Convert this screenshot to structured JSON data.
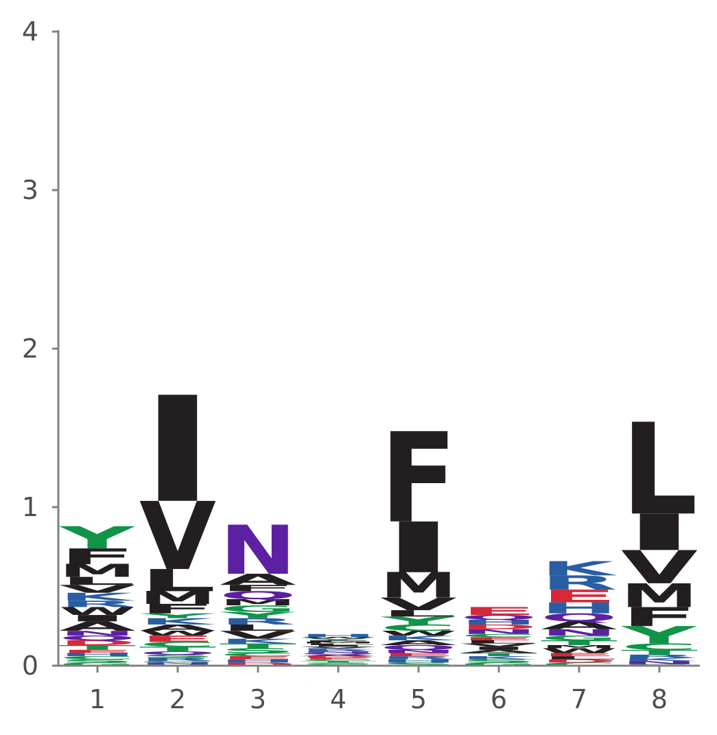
{
  "chart_data": {
    "type": "sequence-logo",
    "title": "",
    "xlabel": "",
    "ylabel": "",
    "ylim": [
      0,
      4
    ],
    "yticks": [
      "0",
      "1",
      "2",
      "3",
      "4"
    ],
    "xticks": [
      "1",
      "2",
      "3",
      "4",
      "5",
      "6",
      "7",
      "8"
    ],
    "grid": false,
    "colors": {
      "hydrophobic": "#231f20",
      "polar": "#0f9448",
      "basic": "#2a5ea3",
      "acidic": "#d62839",
      "amide": "#5d20a3",
      "axis": "#808080",
      "tick_text": "#4d4d4d"
    },
    "positions": [
      {
        "pos": "1",
        "letters": [
          {
            "aa": "G",
            "h": 0.02
          },
          {
            "aa": "S",
            "h": 0.02
          },
          {
            "aa": "C",
            "h": 0.02
          },
          {
            "aa": "H",
            "h": 0.02
          },
          {
            "aa": "E",
            "h": 0.02
          },
          {
            "aa": "T",
            "h": 0.03
          },
          {
            "aa": "D",
            "h": 0.03
          },
          {
            "aa": "Q",
            "h": 0.03
          },
          {
            "aa": "N",
            "h": 0.03
          },
          {
            "aa": "A",
            "h": 0.06
          },
          {
            "aa": "I",
            "h": 0.04
          },
          {
            "aa": "W",
            "h": 0.05
          },
          {
            "aa": "R",
            "h": 0.04
          },
          {
            "aa": "K",
            "h": 0.05
          },
          {
            "aa": "V",
            "h": 0.05
          },
          {
            "aa": "L",
            "h": 0.05
          },
          {
            "aa": "M",
            "h": 0.08
          },
          {
            "aa": "F",
            "h": 0.1
          },
          {
            "aa": "Y",
            "h": 0.14
          }
        ]
      },
      {
        "pos": "2",
        "letters": [
          {
            "aa": "H",
            "h": 0.01
          },
          {
            "aa": "N",
            "h": 0.01
          },
          {
            "aa": "G",
            "h": 0.01
          },
          {
            "aa": "R",
            "h": 0.02
          },
          {
            "aa": "S",
            "h": 0.02
          },
          {
            "aa": "Q",
            "h": 0.02
          },
          {
            "aa": "T",
            "h": 0.03
          },
          {
            "aa": "C",
            "h": 0.03
          },
          {
            "aa": "E",
            "h": 0.04
          },
          {
            "aa": "W",
            "h": 0.03
          },
          {
            "aa": "A",
            "h": 0.04
          },
          {
            "aa": "K",
            "h": 0.04
          },
          {
            "aa": "Y",
            "h": 0.03
          },
          {
            "aa": "F",
            "h": 0.06
          },
          {
            "aa": "M",
            "h": 0.08
          },
          {
            "aa": "L",
            "h": 0.14
          },
          {
            "aa": "V",
            "h": 0.43
          },
          {
            "aa": "I",
            "h": 0.67
          }
        ]
      },
      {
        "pos": "3",
        "letters": [
          {
            "aa": "D",
            "h": 0.02
          },
          {
            "aa": "H",
            "h": 0.02
          },
          {
            "aa": "E",
            "h": 0.02
          },
          {
            "aa": "C",
            "h": 0.02
          },
          {
            "aa": "S",
            "h": 0.03
          },
          {
            "aa": "T",
            "h": 0.03
          },
          {
            "aa": "K",
            "h": 0.03
          },
          {
            "aa": "V",
            "h": 0.05
          },
          {
            "aa": "L",
            "h": 0.04
          },
          {
            "aa": "R",
            "h": 0.04
          },
          {
            "aa": "Y",
            "h": 0.04
          },
          {
            "aa": "G",
            "h": 0.04
          },
          {
            "aa": "M",
            "h": 0.04
          },
          {
            "aa": "Q",
            "h": 0.05
          },
          {
            "aa": "F",
            "h": 0.04
          },
          {
            "aa": "A",
            "h": 0.07
          },
          {
            "aa": "N",
            "h": 0.31
          }
        ]
      },
      {
        "pos": "4",
        "letters": [
          {
            "aa": "G",
            "h": 0.01
          },
          {
            "aa": "S",
            "h": 0.01
          },
          {
            "aa": "T",
            "h": 0.01
          },
          {
            "aa": "C",
            "h": 0.01
          },
          {
            "aa": "E",
            "h": 0.01
          },
          {
            "aa": "D",
            "h": 0.01
          },
          {
            "aa": "A",
            "h": 0.01
          },
          {
            "aa": "Q",
            "h": 0.01
          },
          {
            "aa": "N",
            "h": 0.01
          },
          {
            "aa": "R",
            "h": 0.01
          },
          {
            "aa": "K",
            "h": 0.01
          },
          {
            "aa": "V",
            "h": 0.01
          },
          {
            "aa": "I",
            "h": 0.01
          },
          {
            "aa": "L",
            "h": 0.01
          },
          {
            "aa": "M",
            "h": 0.01
          },
          {
            "aa": "F",
            "h": 0.01
          },
          {
            "aa": "Y",
            "h": 0.01
          },
          {
            "aa": "W",
            "h": 0.01
          },
          {
            "aa": "H",
            "h": 0.02
          }
        ]
      },
      {
        "pos": "5",
        "letters": [
          {
            "aa": "S",
            "h": 0.02
          },
          {
            "aa": "H",
            "h": 0.02
          },
          {
            "aa": "R",
            "h": 0.02
          },
          {
            "aa": "E",
            "h": 0.02
          },
          {
            "aa": "N",
            "h": 0.02
          },
          {
            "aa": "Q",
            "h": 0.03
          },
          {
            "aa": "A",
            "h": 0.03
          },
          {
            "aa": "K",
            "h": 0.03
          },
          {
            "aa": "W",
            "h": 0.03
          },
          {
            "aa": "C",
            "h": 0.04
          },
          {
            "aa": "Y",
            "h": 0.05
          },
          {
            "aa": "L",
            "h": 0.04
          },
          {
            "aa": "V",
            "h": 0.08
          },
          {
            "aa": "M",
            "h": 0.16
          },
          {
            "aa": "I",
            "h": 0.32
          },
          {
            "aa": "F",
            "h": 0.57
          }
        ]
      },
      {
        "pos": "6",
        "letters": [
          {
            "aa": "G",
            "h": 0.02
          },
          {
            "aa": "S",
            "h": 0.02
          },
          {
            "aa": "K",
            "h": 0.02
          },
          {
            "aa": "T",
            "h": 0.02
          },
          {
            "aa": "A",
            "h": 0.02
          },
          {
            "aa": "I",
            "h": 0.02
          },
          {
            "aa": "V",
            "h": 0.02
          },
          {
            "aa": "L",
            "h": 0.02
          },
          {
            "aa": "E",
            "h": 0.02
          },
          {
            "aa": "C",
            "h": 0.02
          },
          {
            "aa": "N",
            "h": 0.03
          },
          {
            "aa": "D",
            "h": 0.03
          },
          {
            "aa": "H",
            "h": 0.03
          },
          {
            "aa": "Q",
            "h": 0.03
          },
          {
            "aa": "E",
            "h": 0.05
          }
        ]
      },
      {
        "pos": "7",
        "letters": [
          {
            "aa": "C",
            "h": 0.02
          },
          {
            "aa": "D",
            "h": 0.02
          },
          {
            "aa": "L",
            "h": 0.02
          },
          {
            "aa": "E",
            "h": 0.02
          },
          {
            "aa": "W",
            "h": 0.03
          },
          {
            "aa": "M",
            "h": 0.02
          },
          {
            "aa": "T",
            "h": 0.03
          },
          {
            "aa": "G",
            "h": 0.03
          },
          {
            "aa": "N",
            "h": 0.04
          },
          {
            "aa": "A",
            "h": 0.05
          },
          {
            "aa": "Q",
            "h": 0.05
          },
          {
            "aa": "H",
            "h": 0.07
          },
          {
            "aa": "E",
            "h": 0.08
          },
          {
            "aa": "R",
            "h": 0.09
          },
          {
            "aa": "K",
            "h": 0.09
          }
        ]
      },
      {
        "pos": "8",
        "letters": [
          {
            "aa": "S",
            "h": 0.01
          },
          {
            "aa": "N",
            "h": 0.02
          },
          {
            "aa": "K",
            "h": 0.02
          },
          {
            "aa": "R",
            "h": 0.02
          },
          {
            "aa": "T",
            "h": 0.03
          },
          {
            "aa": "C",
            "h": 0.04
          },
          {
            "aa": "Y",
            "h": 0.11
          },
          {
            "aa": "F",
            "h": 0.12
          },
          {
            "aa": "M",
            "h": 0.15
          },
          {
            "aa": "V",
            "h": 0.21
          },
          {
            "aa": "I",
            "h": 0.23
          },
          {
            "aa": "L",
            "h": 0.58
          }
        ]
      }
    ]
  }
}
